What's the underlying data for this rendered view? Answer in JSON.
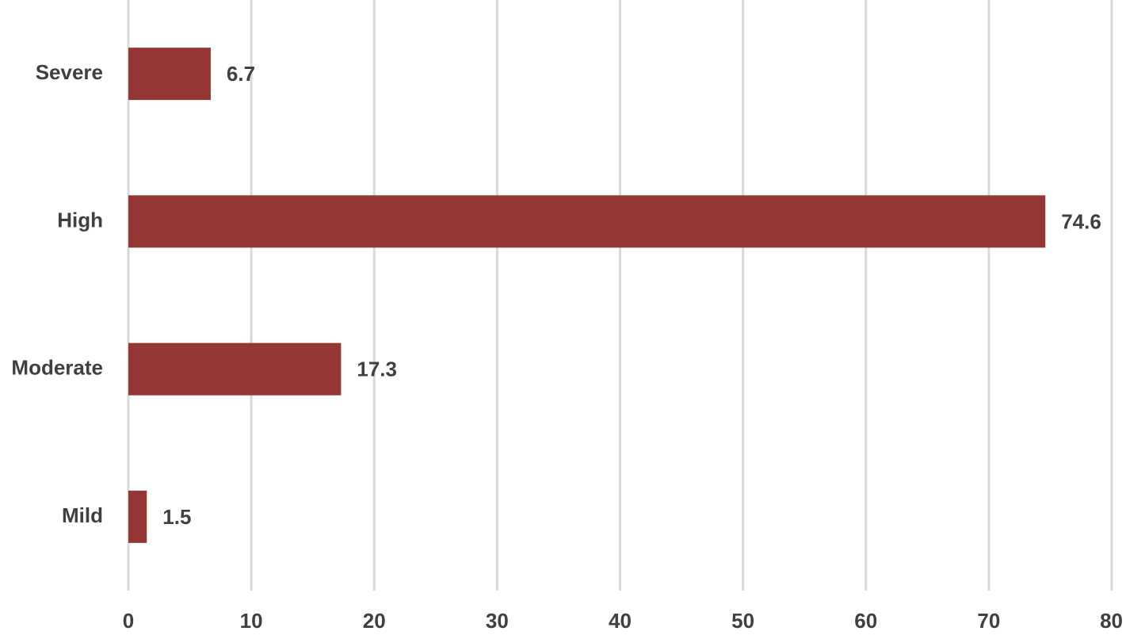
{
  "chart_data": {
    "type": "bar",
    "orientation": "horizontal",
    "categories": [
      "Severe",
      "High",
      "Moderate",
      "Mild"
    ],
    "values": [
      6.7,
      74.6,
      17.3,
      1.5
    ],
    "color": "#943634",
    "xlim": [
      0,
      80
    ],
    "xticks": [
      0,
      10,
      20,
      30,
      40,
      50,
      60,
      70,
      80
    ],
    "grid": true
  }
}
